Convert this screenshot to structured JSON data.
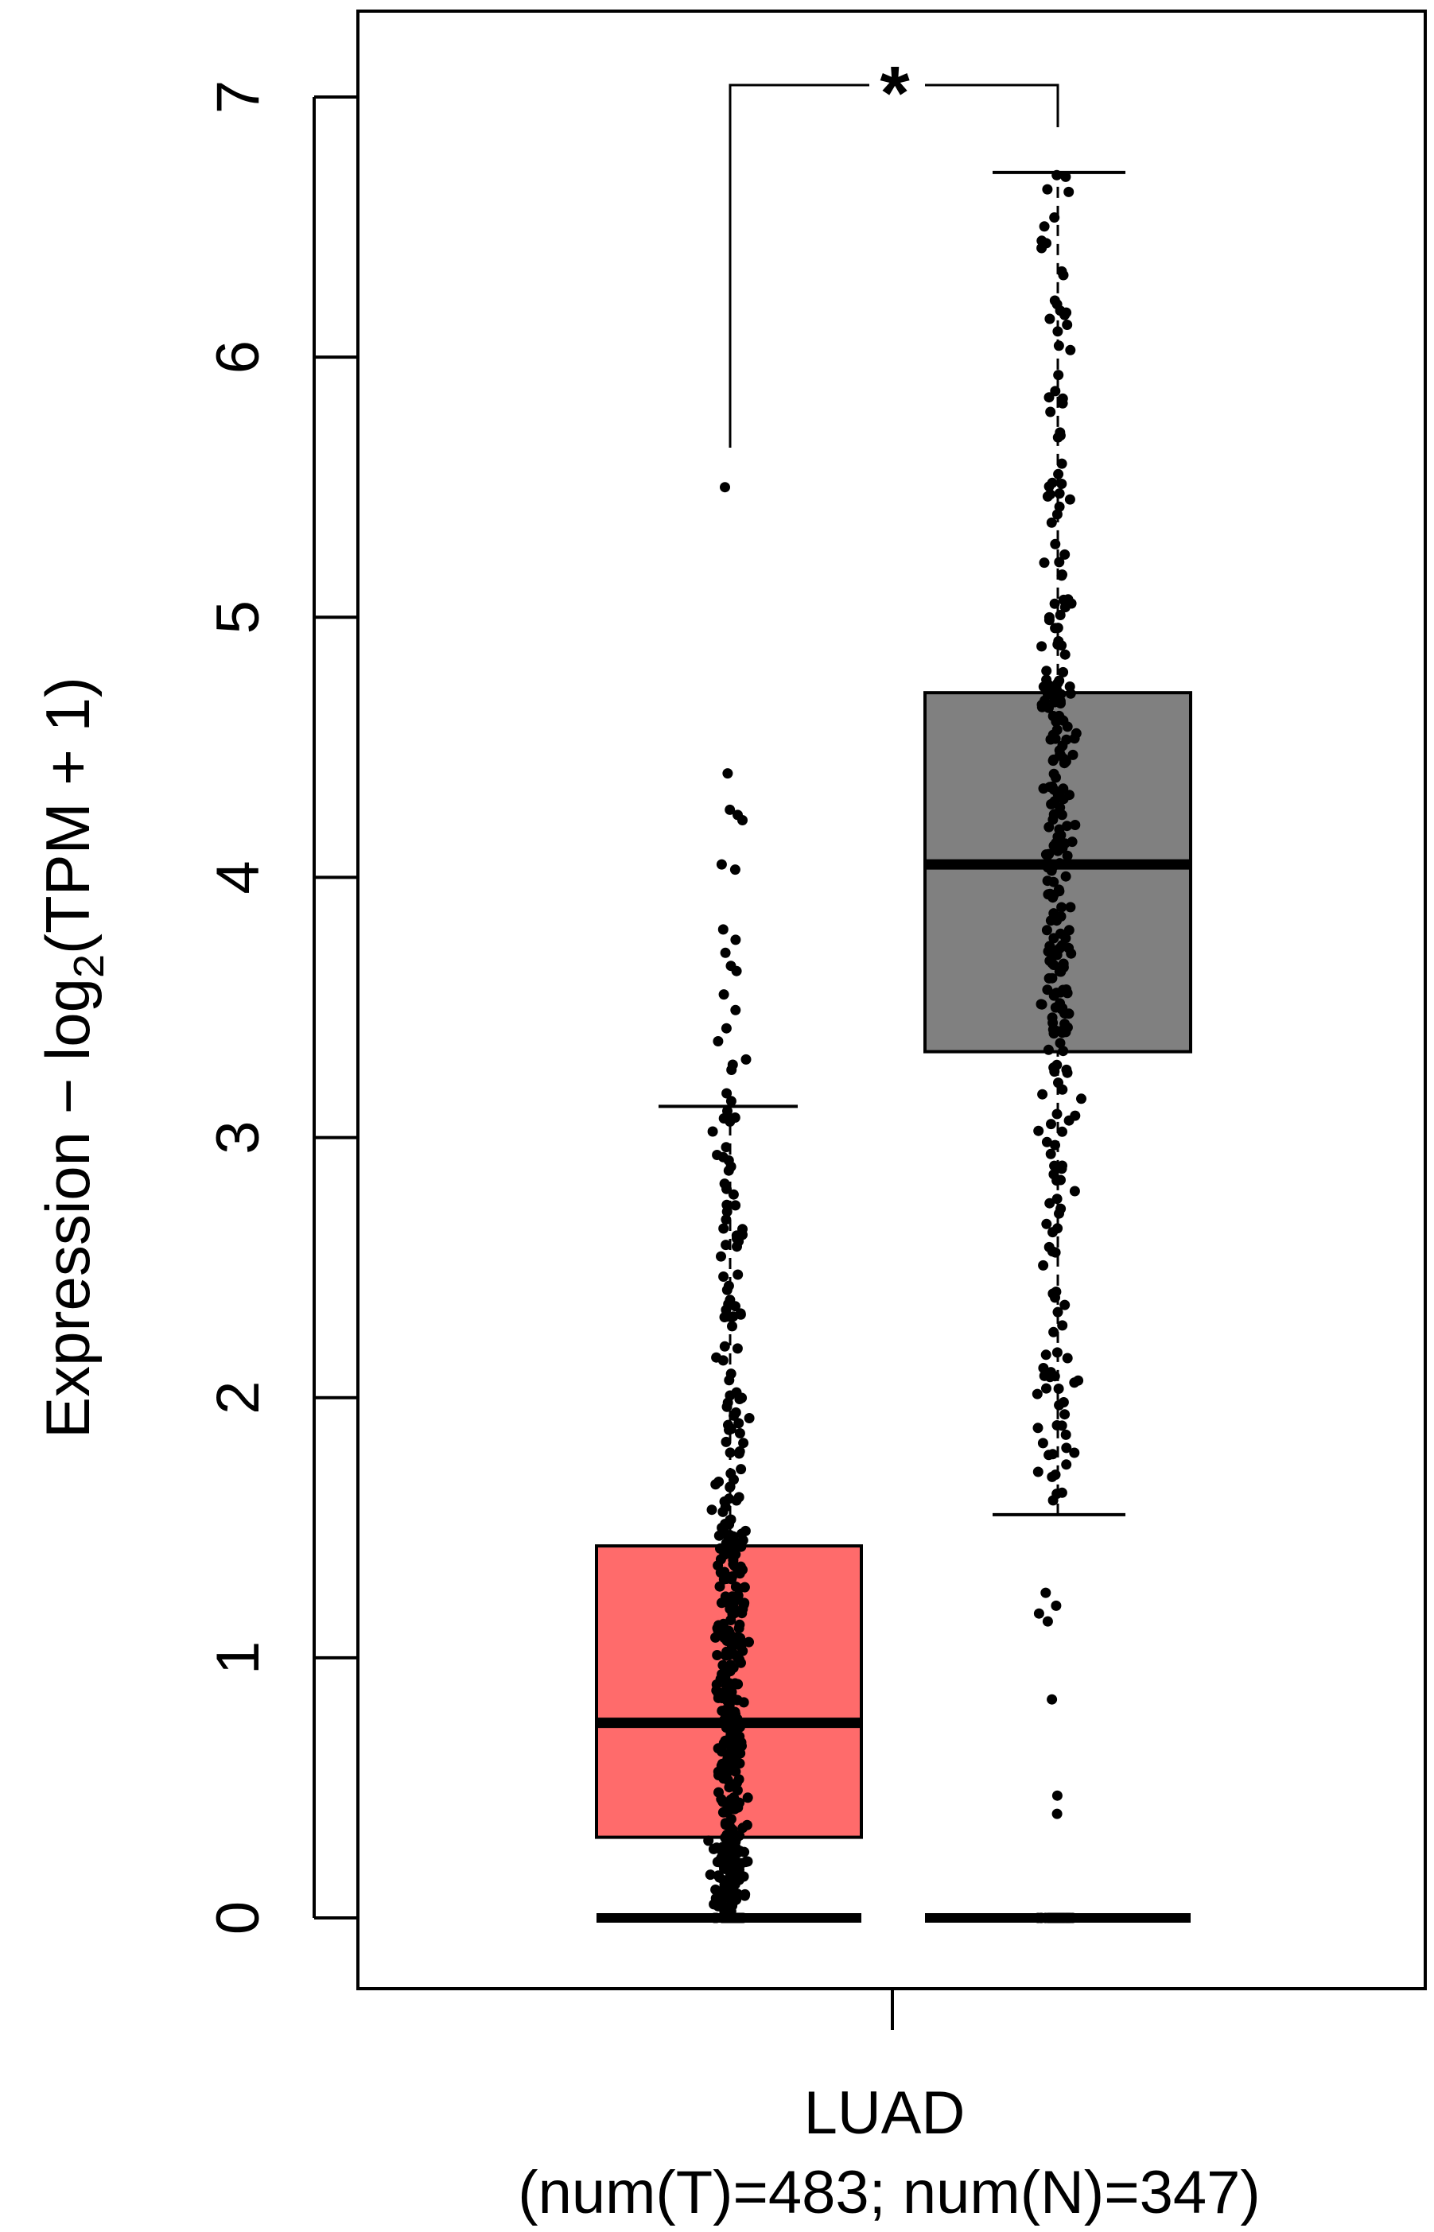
{
  "chart_data": {
    "type": "box",
    "ylabel_main": "Expression − log",
    "ylabel_sub": "2",
    "ylabel_tail": "(TPM + 1)",
    "ylim": [
      0,
      7
    ],
    "yticks": [
      "0",
      "1",
      "2",
      "3",
      "4",
      "5",
      "6",
      "7"
    ],
    "category": "LUAD",
    "sample_sizes": "(num(T)=483; num(N)=347)",
    "significance": "*",
    "significance_color": "#ff0000",
    "grid": false,
    "series": [
      {
        "group": "T",
        "color": "#ff6b6b",
        "n": 483,
        "q1": 0.31,
        "median": 0.75,
        "q3": 1.43,
        "whisker_low": 0,
        "whisker_high": 3.12,
        "zeros": 40,
        "outliers": [
          5.5,
          4.4,
          4.26,
          4.24,
          4.22,
          4.05,
          4.03,
          3.8,
          3.76,
          3.71,
          3.66,
          3.64,
          3.55,
          3.49,
          3.42,
          3.37,
          3.3,
          3.28,
          3.26,
          3.17,
          3.14
        ]
      },
      {
        "group": "N",
        "color": "#808080",
        "n": 347,
        "q1": 3.33,
        "median": 4.05,
        "q3": 4.71,
        "whisker_low": 1.55,
        "whisker_high": 6.71,
        "zeros": 40,
        "outliers": [
          1.25,
          1.2,
          1.17,
          1.14,
          0.84,
          0.47,
          0.4
        ]
      }
    ]
  }
}
